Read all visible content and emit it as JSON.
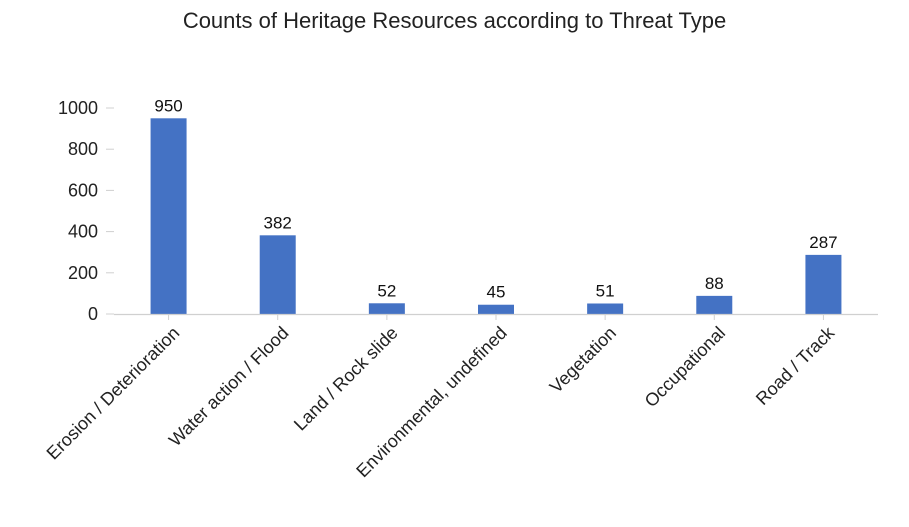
{
  "chart_data": {
    "type": "bar",
    "title": "Counts of Heritage Resources according to Threat Type",
    "xlabel": "",
    "ylabel": "",
    "categories": [
      "Erosion / Deterioration",
      "Water action / Flood",
      "Land / Rock slide",
      "Environmental, undefined",
      "Vegetation",
      "Occupational",
      "Road / Track"
    ],
    "values": [
      950,
      382,
      52,
      45,
      51,
      88,
      287
    ],
    "ylim": [
      0,
      1000
    ],
    "yticks": [
      0,
      200,
      400,
      600,
      800,
      1000
    ],
    "grid": false,
    "legend": "none",
    "bar_color": "#4472C4",
    "data_labels": true
  }
}
